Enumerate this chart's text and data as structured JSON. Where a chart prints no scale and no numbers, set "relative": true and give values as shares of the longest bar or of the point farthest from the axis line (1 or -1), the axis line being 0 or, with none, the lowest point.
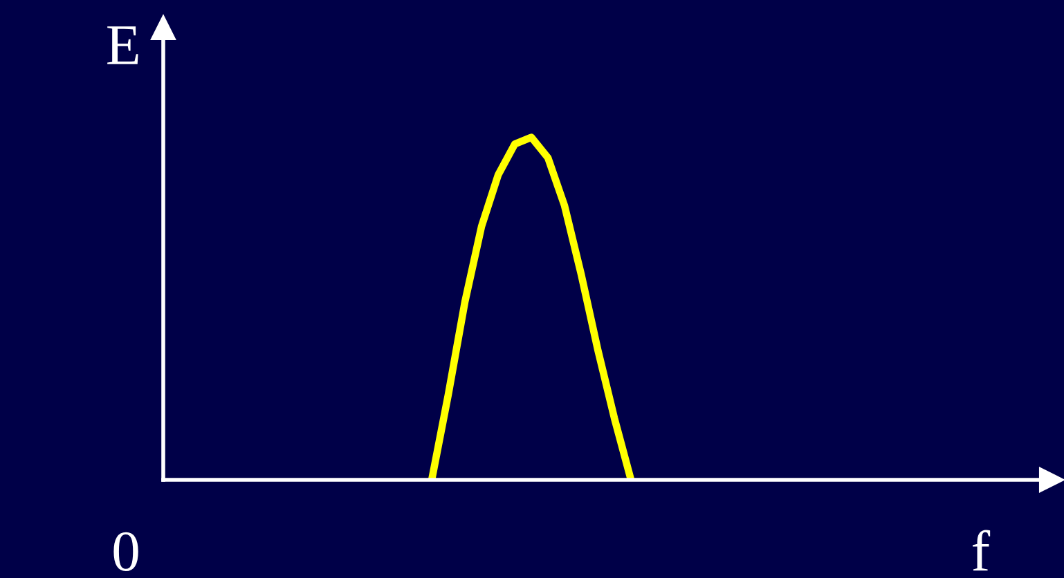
{
  "chart_data": {
    "type": "line",
    "relative": true,
    "xlabel": "f",
    "ylabel": "E",
    "annotations": [
      "0"
    ],
    "categories": [
      null,
      null,
      null,
      null,
      null,
      null,
      null,
      null,
      null,
      null,
      null,
      null,
      null,
      null,
      null,
      null,
      null,
      null,
      null,
      null,
      null,
      null,
      null,
      null,
      null,
      null,
      null,
      null,
      null,
      null,
      null,
      null,
      null,
      null,
      null,
      null,
      null,
      null,
      null,
      null,
      null,
      null,
      null,
      null,
      null,
      null,
      null,
      null,
      null,
      null,
      null,
      null,
      null,
      null
    ],
    "series": [
      {
        "color": "#ffff00",
        "values": [
          null,
          null,
          null,
          null,
          null,
          null,
          null,
          null,
          null,
          null,
          null,
          null,
          null,
          null,
          null,
          null,
          0,
          0.25,
          0.52,
          0.74,
          0.89,
          0.98,
          1.0,
          0.94,
          0.8,
          0.6,
          0.38,
          0.18,
          0,
          null,
          null,
          null,
          null,
          null,
          null,
          null,
          null,
          null,
          null,
          null,
          null,
          null,
          null,
          null,
          null,
          null,
          null,
          null,
          null,
          null,
          null,
          null,
          null,
          null
        ]
      }
    ],
    "legend": false,
    "marker": "none",
    "line_style": "solid"
  }
}
